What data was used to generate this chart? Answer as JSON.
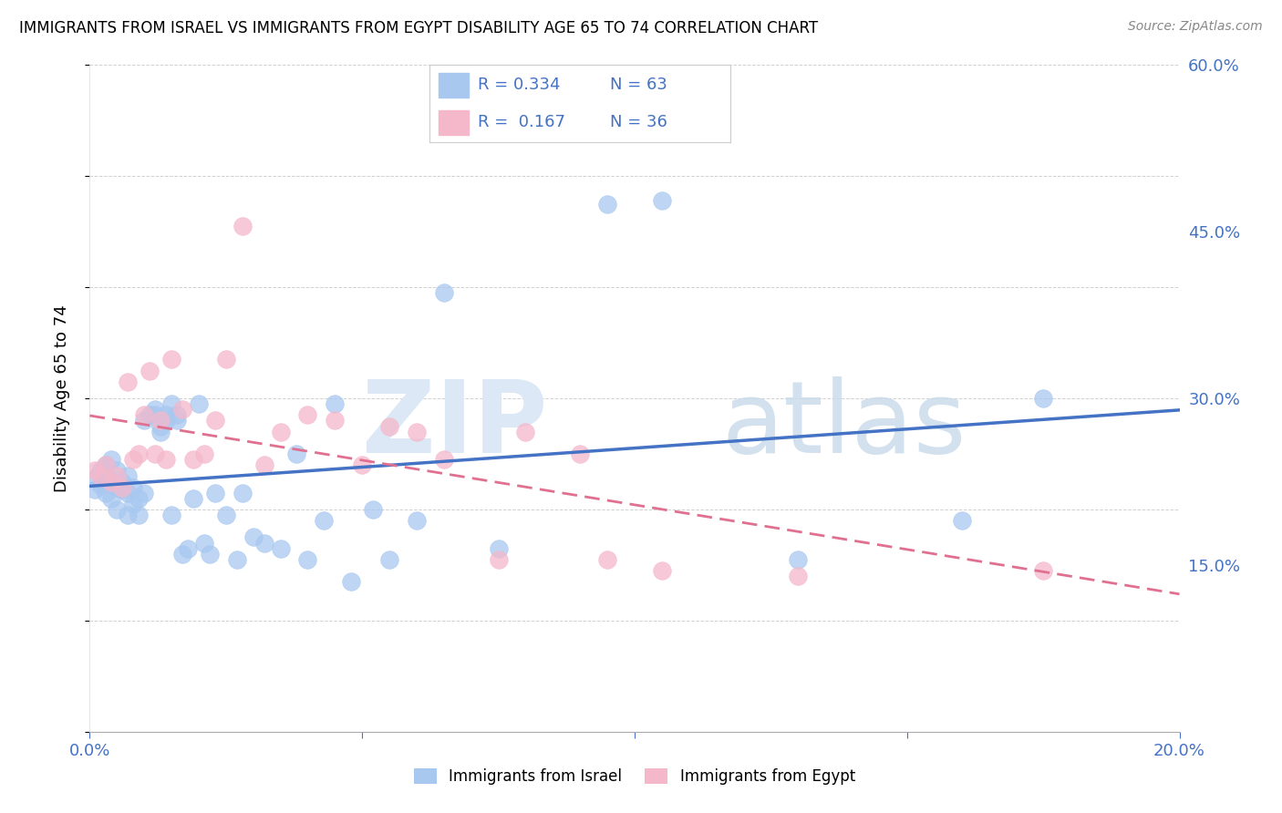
{
  "title": "IMMIGRANTS FROM ISRAEL VS IMMIGRANTS FROM EGYPT DISABILITY AGE 65 TO 74 CORRELATION CHART",
  "source": "Source: ZipAtlas.com",
  "ylabel": "Disability Age 65 to 74",
  "xmin": 0.0,
  "xmax": 0.2,
  "ymin": 0.0,
  "ymax": 0.6,
  "israel_color": "#a8c8f0",
  "egypt_color": "#f5b8cb",
  "israel_line_color": "#4472c4",
  "egypt_line_color": "#e07090",
  "legend_text_color": "#4472c4",
  "R_israel": 0.334,
  "N_israel": 63,
  "R_egypt": 0.167,
  "N_egypt": 36,
  "israel_x": [
    0.001,
    0.001,
    0.002,
    0.002,
    0.003,
    0.003,
    0.003,
    0.004,
    0.004,
    0.004,
    0.005,
    0.005,
    0.005,
    0.006,
    0.006,
    0.007,
    0.007,
    0.007,
    0.008,
    0.008,
    0.009,
    0.009,
    0.01,
    0.01,
    0.011,
    0.012,
    0.012,
    0.013,
    0.013,
    0.014,
    0.014,
    0.015,
    0.015,
    0.016,
    0.016,
    0.017,
    0.018,
    0.019,
    0.02,
    0.021,
    0.022,
    0.023,
    0.025,
    0.027,
    0.028,
    0.03,
    0.032,
    0.035,
    0.038,
    0.04,
    0.043,
    0.045,
    0.048,
    0.052,
    0.055,
    0.06,
    0.065,
    0.075,
    0.095,
    0.105,
    0.13,
    0.16,
    0.175
  ],
  "israel_y": [
    0.228,
    0.218,
    0.235,
    0.222,
    0.24,
    0.23,
    0.215,
    0.245,
    0.225,
    0.21,
    0.235,
    0.22,
    0.2,
    0.218,
    0.225,
    0.23,
    0.215,
    0.195,
    0.22,
    0.205,
    0.21,
    0.195,
    0.28,
    0.215,
    0.285,
    0.285,
    0.29,
    0.27,
    0.275,
    0.28,
    0.285,
    0.295,
    0.195,
    0.28,
    0.285,
    0.16,
    0.165,
    0.21,
    0.295,
    0.17,
    0.16,
    0.215,
    0.195,
    0.155,
    0.215,
    0.175,
    0.17,
    0.165,
    0.25,
    0.155,
    0.19,
    0.295,
    0.135,
    0.2,
    0.155,
    0.19,
    0.395,
    0.165,
    0.475,
    0.478,
    0.155,
    0.19,
    0.3
  ],
  "egypt_x": [
    0.001,
    0.002,
    0.003,
    0.004,
    0.005,
    0.006,
    0.007,
    0.008,
    0.009,
    0.01,
    0.011,
    0.012,
    0.013,
    0.014,
    0.015,
    0.017,
    0.019,
    0.021,
    0.023,
    0.025,
    0.028,
    0.032,
    0.035,
    0.04,
    0.045,
    0.05,
    0.055,
    0.06,
    0.065,
    0.075,
    0.08,
    0.09,
    0.095,
    0.105,
    0.13,
    0.175
  ],
  "egypt_y": [
    0.235,
    0.23,
    0.24,
    0.225,
    0.23,
    0.22,
    0.315,
    0.245,
    0.25,
    0.285,
    0.325,
    0.25,
    0.28,
    0.245,
    0.335,
    0.29,
    0.245,
    0.25,
    0.28,
    0.335,
    0.455,
    0.24,
    0.27,
    0.285,
    0.28,
    0.24,
    0.275,
    0.27,
    0.245,
    0.155,
    0.27,
    0.25,
    0.155,
    0.145,
    0.14,
    0.145
  ]
}
